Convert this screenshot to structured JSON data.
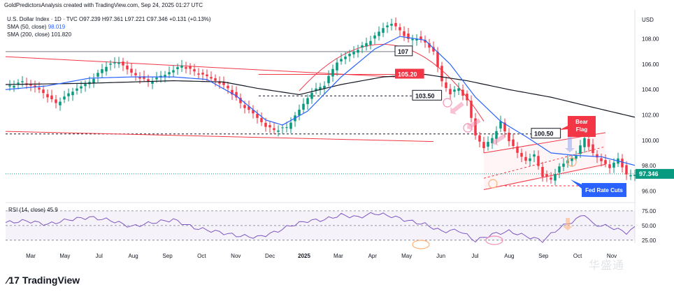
{
  "header": {
    "attribution": "GoldPredictorsAnalysis created with TradingView.com, Sep 24, 2025 01:27 UTC"
  },
  "legend": {
    "symbol_line": "U.S. Dollar Index · 1D · TVC  O97.239  H97.361  L97.221  C97.346  +0.131 (+0.13%)",
    "sma50_label": "SMA (50, close)",
    "sma50_value": "98.019",
    "sma200_label": "SMA (200, close)",
    "sma200_value": "101.820",
    "rsi_label": "RSI (14, close)",
    "rsi_value": "45.9"
  },
  "footer": {
    "logo_text": "TradingView",
    "watermark": "华盛通"
  },
  "colors": {
    "candle_up": "#089981",
    "candle_down": "#f23645",
    "sma50": "#2962ff",
    "sma200": "#131722",
    "rsi": "#7e57c2",
    "annotation_red": "#f23645",
    "annotation_blue": "#2962ff"
  },
  "chart_data": {
    "type": "candlestick",
    "instrument": "U.S. Dollar Index",
    "timeframe": "1D",
    "currency": "USD",
    "last_price": 97.346,
    "y_axis_unit": "USD",
    "y_ticks": [
      96.0,
      98.0,
      100.0,
      102.0,
      104.0,
      106.0,
      108.0
    ],
    "ylim": [
      95.3,
      110.3
    ],
    "x_ticks": [
      "Mar",
      "May",
      "Jul",
      "Aug",
      "Sep",
      "Oct",
      "Nov",
      "Dec",
      "2025",
      "Mar",
      "Apr",
      "May",
      "Jun",
      "Jul",
      "Aug",
      "Sep",
      "Oct",
      "Nov"
    ],
    "price_path": [
      [
        0,
        104.2
      ],
      [
        4,
        104.6
      ],
      [
        8,
        104.0
      ],
      [
        12,
        102.9
      ],
      [
        16,
        103.9
      ],
      [
        20,
        104.6
      ],
      [
        24,
        105.9
      ],
      [
        27,
        106.2
      ],
      [
        30,
        105.3
      ],
      [
        34,
        104.6
      ],
      [
        38,
        105.2
      ],
      [
        42,
        105.9
      ],
      [
        45,
        105.4
      ],
      [
        49,
        104.9
      ],
      [
        53,
        104.1
      ],
      [
        56,
        102.9
      ],
      [
        59,
        102.1
      ],
      [
        62,
        101.1
      ],
      [
        64,
        100.8
      ],
      [
        67,
        101.0
      ],
      [
        70,
        102.4
      ],
      [
        73,
        103.8
      ],
      [
        76,
        104.4
      ],
      [
        79,
        106.2
      ],
      [
        82,
        106.8
      ],
      [
        85,
        107.4
      ],
      [
        88,
        108.2
      ],
      [
        90,
        108.9
      ],
      [
        92,
        109.2
      ],
      [
        94,
        108.7
      ],
      [
        96,
        107.9
      ],
      [
        98,
        108.1
      ],
      [
        100,
        107.7
      ],
      [
        102,
        107.0
      ],
      [
        104,
        104.6
      ],
      [
        106,
        103.7
      ],
      [
        108,
        104.1
      ],
      [
        110,
        103.1
      ],
      [
        112,
        100.4
      ],
      [
        114,
        99.4
      ],
      [
        116,
        100.2
      ],
      [
        118,
        101.4
      ],
      [
        120,
        100.0
      ],
      [
        122,
        99.0
      ],
      [
        124,
        98.4
      ],
      [
        126,
        98.8
      ],
      [
        128,
        97.2
      ],
      [
        130,
        96.9
      ],
      [
        132,
        97.9
      ],
      [
        134,
        98.4
      ],
      [
        136,
        98.8
      ],
      [
        138,
        100.2
      ],
      [
        140,
        98.9
      ],
      [
        142,
        98.4
      ],
      [
        144,
        97.8
      ],
      [
        146,
        98.6
      ],
      [
        148,
        97.2
      ],
      [
        150,
        97.35
      ]
    ],
    "sma50_path": [
      [
        0,
        104.0
      ],
      [
        10,
        104.3
      ],
      [
        20,
        104.9
      ],
      [
        30,
        105.0
      ],
      [
        40,
        105.0
      ],
      [
        48,
        104.8
      ],
      [
        55,
        103.5
      ],
      [
        62,
        101.6
      ],
      [
        66,
        101.2
      ],
      [
        72,
        102.3
      ],
      [
        80,
        105.0
      ],
      [
        88,
        107.2
      ],
      [
        94,
        108.2
      ],
      [
        100,
        107.9
      ],
      [
        106,
        106.0
      ],
      [
        112,
        103.4
      ],
      [
        118,
        101.5
      ],
      [
        124,
        100.3
      ],
      [
        130,
        99.0
      ],
      [
        136,
        98.8
      ],
      [
        142,
        98.7
      ],
      [
        150,
        98.02
      ]
    ],
    "sma200_path": [
      [
        0,
        104.4
      ],
      [
        20,
        104.5
      ],
      [
        40,
        104.7
      ],
      [
        52,
        104.6
      ],
      [
        60,
        104.1
      ],
      [
        70,
        103.6
      ],
      [
        80,
        104.4
      ],
      [
        90,
        105.0
      ],
      [
        100,
        105.2
      ],
      [
        110,
        104.7
      ],
      [
        120,
        104.0
      ],
      [
        130,
        103.4
      ],
      [
        140,
        102.6
      ],
      [
        150,
        101.82
      ]
    ],
    "levels": [
      {
        "label": "107",
        "value": 107.0,
        "style": "solid"
      },
      {
        "label": "105.20",
        "value": 105.2,
        "style": "solid-red"
      },
      {
        "label": "103.50",
        "value": 103.5,
        "style": "dashed"
      },
      {
        "label": "100.50",
        "value": 100.5,
        "style": "dashed"
      }
    ],
    "annotations": [
      "Bear Flag",
      "Fed Rate Cuts"
    ],
    "rsi": {
      "name": "RSI (14, close)",
      "value": 45.9,
      "ticks": [
        25.0,
        50.0,
        75.0
      ],
      "ylim": [
        20,
        82
      ],
      "path": [
        [
          0,
          55
        ],
        [
          5,
          58
        ],
        [
          10,
          52
        ],
        [
          15,
          60
        ],
        [
          20,
          64
        ],
        [
          25,
          59
        ],
        [
          30,
          48
        ],
        [
          35,
          55
        ],
        [
          40,
          60
        ],
        [
          45,
          46
        ],
        [
          50,
          40
        ],
        [
          55,
          33
        ],
        [
          60,
          30
        ],
        [
          64,
          38
        ],
        [
          68,
          50
        ],
        [
          72,
          58
        ],
        [
          76,
          60
        ],
        [
          80,
          68
        ],
        [
          84,
          64
        ],
        [
          88,
          71
        ],
        [
          92,
          66
        ],
        [
          96,
          58
        ],
        [
          100,
          52
        ],
        [
          104,
          40
        ],
        [
          108,
          42
        ],
        [
          112,
          24
        ],
        [
          116,
          35
        ],
        [
          120,
          40
        ],
        [
          124,
          32
        ],
        [
          128,
          24
        ],
        [
          132,
          46
        ],
        [
          136,
          60
        ],
        [
          138,
          70
        ],
        [
          140,
          52
        ],
        [
          144,
          48
        ],
        [
          148,
          38
        ],
        [
          150,
          45.9
        ]
      ]
    }
  }
}
